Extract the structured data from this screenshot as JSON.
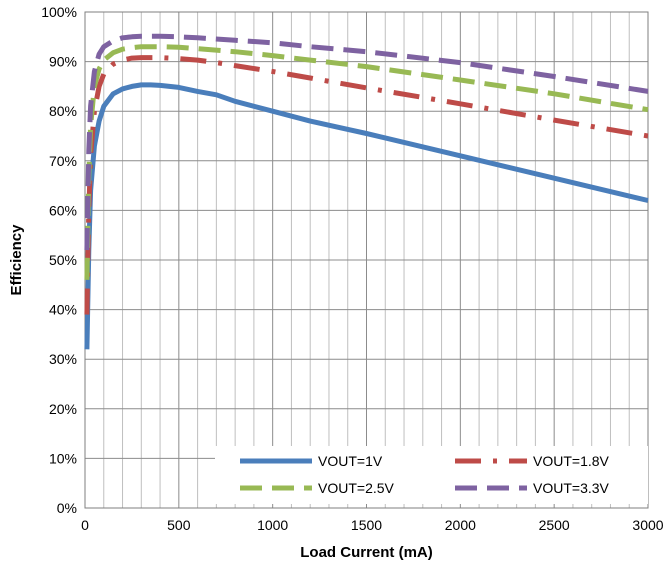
{
  "chart_data": {
    "type": "line",
    "title": "",
    "xlabel": "Load Current (mA)",
    "ylabel": "Efficiency",
    "xlim": [
      0,
      3000
    ],
    "ylim": [
      0,
      100
    ],
    "x_ticks": [
      "0",
      "500",
      "1000",
      "1500",
      "2000",
      "2500",
      "3000"
    ],
    "y_ticks": [
      "0%",
      "10%",
      "20%",
      "30%",
      "40%",
      "50%",
      "60%",
      "70%",
      "80%",
      "90%",
      "100%"
    ],
    "grid": true,
    "legend_position": "bottom-right",
    "series": [
      {
        "name": "VOUT=1V",
        "color": "#4a7ebb",
        "dash": "solid",
        "x": [
          10,
          20,
          30,
          50,
          75,
          100,
          150,
          200,
          250,
          300,
          350,
          400,
          500,
          600,
          700,
          800,
          1000,
          1200,
          1500,
          2000,
          2500,
          3000
        ],
        "y": [
          32,
          52,
          64,
          73,
          78,
          81,
          83.5,
          84.5,
          85,
          85.3,
          85.3,
          85.2,
          84.8,
          84,
          83.3,
          82,
          80,
          78,
          75.5,
          71,
          66.5,
          62
        ]
      },
      {
        "name": "VOUT=1.8V",
        "color": "#be4b48",
        "dash": "longdash-dot",
        "x": [
          10,
          20,
          30,
          50,
          75,
          100,
          150,
          200,
          250,
          300,
          400,
          500,
          600,
          700,
          800,
          1000,
          1200,
          1500,
          2000,
          2500,
          3000
        ],
        "y": [
          39,
          60,
          71,
          80,
          85,
          87.5,
          89.5,
          90.3,
          90.7,
          90.8,
          90.8,
          90.6,
          90.3,
          89.8,
          89.2,
          88,
          86.7,
          84.7,
          81.5,
          78.2,
          75
        ]
      },
      {
        "name": "VOUT=2.5V",
        "color": "#98b954",
        "dash": "longdash",
        "x": [
          10,
          20,
          30,
          50,
          75,
          100,
          150,
          200,
          250,
          300,
          400,
          500,
          600,
          800,
          1000,
          1200,
          1500,
          2000,
          2500,
          3000
        ],
        "y": [
          46,
          67,
          77,
          85,
          88.5,
          90.3,
          91.8,
          92.5,
          92.8,
          93,
          93,
          92.9,
          92.6,
          92,
          91.2,
          90.3,
          89,
          86.3,
          83.5,
          80.3
        ]
      },
      {
        "name": "VOUT=3.3V",
        "color": "#7e62a1",
        "dash": "longdash",
        "x": [
          10,
          20,
          30,
          50,
          75,
          100,
          150,
          200,
          250,
          300,
          400,
          500,
          600,
          800,
          1000,
          1200,
          1500,
          2000,
          2500,
          3000
        ],
        "y": [
          52,
          72,
          81,
          88,
          91.5,
          93,
          94.2,
          94.8,
          95,
          95.1,
          95.1,
          95,
          94.8,
          94.3,
          93.8,
          93,
          92,
          89.8,
          87,
          84
        ]
      }
    ]
  }
}
